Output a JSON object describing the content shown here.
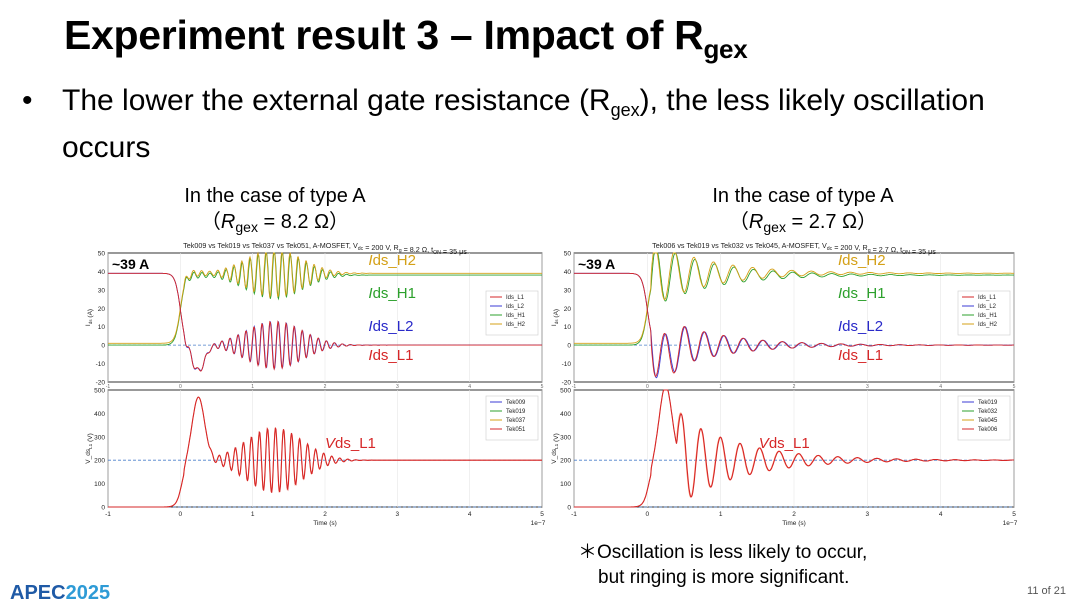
{
  "slide": {
    "title_main": "Experiment result 3 – Impact of R",
    "title_sub": "gex",
    "bullet_symbol": "•",
    "bullet_pre": "The lower the external gate resistance (R",
    "bullet_sub": "gex",
    "bullet_post": "), the less likely oscillation occurs",
    "note_line1": "＊Oscillation is less likely to occur,",
    "note_line2": "but ringing is more significant.",
    "logo_a": "APEC",
    "logo_b": "2025",
    "page": "11 of 21"
  },
  "chart_data": [
    {
      "type": "line",
      "caption_line1": "In the case of type A",
      "caption_open": "（",
      "caption_r": "R",
      "caption_sub": "gex",
      "caption_value": " = 8.2 Ω）",
      "title": "Tek009 vs Tek019 vs Tek037 vs Tek051, A-MOSFET, V_dc = 200 V, R_g = 8.2 Ω, t_ON = 35 μs",
      "peak_annotation": "~39 A",
      "top": {
        "ylabel": "I_ds (A)",
        "ylim": [
          -20,
          50
        ],
        "yticks": [
          "50",
          "40",
          "30",
          "20",
          "10",
          "0",
          "-10",
          "-20"
        ],
        "legend": [
          "Ids_L1",
          "Ids_L2",
          "Ids_H1",
          "Ids_H2"
        ],
        "annotations": [
          "Ids_H2",
          "Ids_H1",
          "Ids_L2",
          "Ids_L1"
        ],
        "decay": 0.18,
        "freq": 18,
        "amplitude": 13,
        "hump": 1.3,
        "dip": 0.35
      },
      "bottom": {
        "ylabel": "V_ds_L1 (V)",
        "ylim": [
          0,
          500
        ],
        "yticks": [
          "500",
          "400",
          "300",
          "200",
          "100",
          "0"
        ],
        "legend": [
          "Tek009",
          "Tek019",
          "Tek037",
          "Tek051"
        ],
        "annotation": "Vds_L1",
        "xlabel": "Time (s)",
        "xticks": [
          "-1",
          "0",
          "1",
          "2",
          "3",
          "4",
          "5"
        ],
        "xscale": "1e−7",
        "xlim": [
          -1,
          5
        ],
        "decay": 0.18,
        "freq": 18,
        "amplitude": 140,
        "peak": 470,
        "steady": 200,
        "hump": 1.3
      }
    },
    {
      "type": "line",
      "caption_line1": "In the case of type A",
      "caption_open": "（",
      "caption_r": "R",
      "caption_sub": "gex",
      "caption_value": " = 2.7 Ω）",
      "title": "Tek006 vs Tek019 vs Tek032 vs Tek045, A-MOSFET, V_dc = 200 V, R_g = 2.7 Ω, t_ON = 35 μs",
      "peak_annotation": "~39 A",
      "top": {
        "ylabel": "I_ds (A)",
        "ylim": [
          -20,
          50
        ],
        "yticks": [
          "50",
          "40",
          "30",
          "20",
          "10",
          "0",
          "-10",
          "-20"
        ],
        "legend": [
          "Ids_L1",
          "Ids_L2",
          "Ids_H1",
          "Ids_H2"
        ],
        "annotations": [
          "Ids_H2",
          "Ids_H1",
          "Ids_L2",
          "Ids_L1"
        ],
        "decay": 0.8,
        "freq": 7.5,
        "amplitude": 18,
        "hump": 0,
        "dip": 0.2
      },
      "bottom": {
        "ylabel": "V_ds_L1 (V)",
        "ylim": [
          0,
          500
        ],
        "yticks": [
          "500",
          "400",
          "300",
          "200",
          "100",
          "0"
        ],
        "legend": [
          "Tek019",
          "Tek032",
          "Tek045",
          "Tek006"
        ],
        "annotation": "Vds_L1",
        "xlabel": "Time (s)",
        "xticks": [
          "-1",
          "0",
          "1",
          "2",
          "3",
          "4",
          "5"
        ],
        "xscale": "1e−7",
        "xlim": [
          -1,
          5
        ],
        "decay": 0.85,
        "freq": 7.5,
        "amplitude": 300,
        "peak": 520,
        "steady": 200,
        "hump": 0
      }
    }
  ]
}
